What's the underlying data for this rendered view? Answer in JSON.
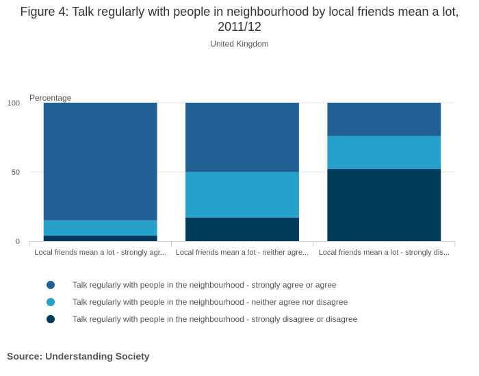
{
  "chart_data": {
    "type": "bar",
    "stacked": true,
    "title": "Figure 4: Talk regularly with people in neighbourhood by local friends mean a lot, 2011/12",
    "subtitle": "United Kingdom",
    "ylabel": "Percentage",
    "ylim": [
      0,
      100
    ],
    "yticks": [
      0,
      50,
      100
    ],
    "categories": [
      "Local friends mean a lot - strongly agr...",
      "Local friends mean a lot - neither agre...",
      "Local friends mean a lot - strongly dis..."
    ],
    "series": [
      {
        "name": "Talk regularly with people in the neighbourhood - strongly disagree or disagree",
        "color": "#003a5b",
        "values": [
          4,
          17,
          52
        ]
      },
      {
        "name": "Talk regularly with people in the neighbourhood - neither agree nor disagree",
        "color": "#27a0cc",
        "values": [
          11,
          33,
          24
        ]
      },
      {
        "name": "Talk regularly with people in the neighbourhood - strongly agree or agree",
        "color": "#206095",
        "values": [
          85,
          50,
          24
        ]
      }
    ],
    "legend_order": [
      2,
      1,
      0
    ],
    "grid": true,
    "legend_position": "bottom"
  },
  "source": {
    "prefix": "Source:",
    "text": "Understanding Society"
  }
}
